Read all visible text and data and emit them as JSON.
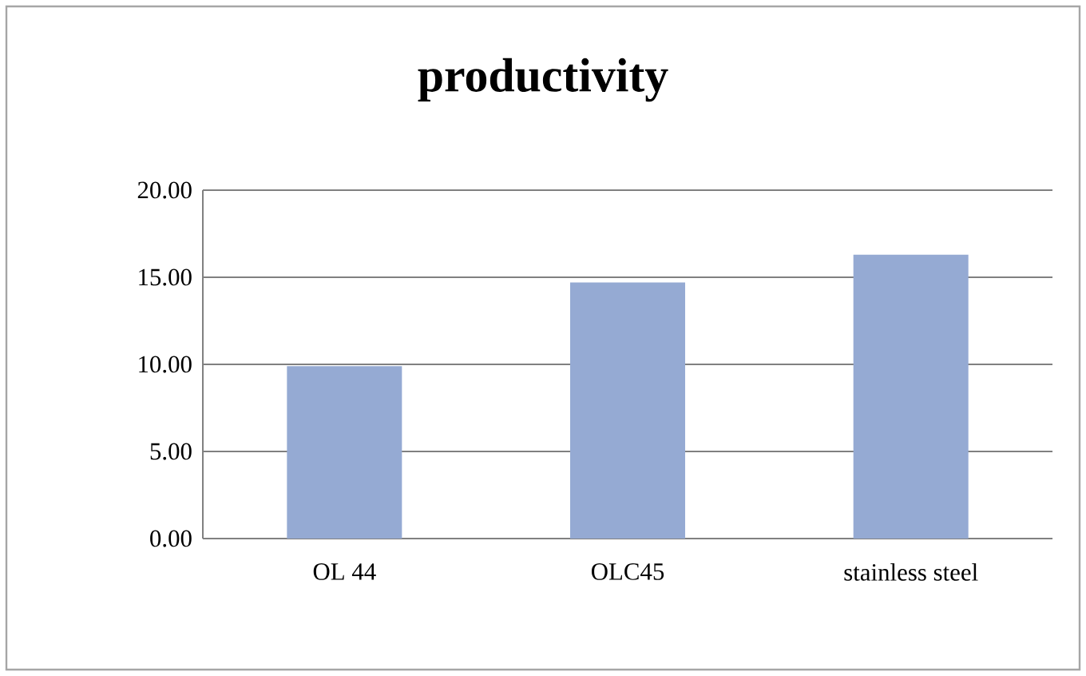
{
  "chart_data": {
    "type": "bar",
    "title": "productivity",
    "categories": [
      "OL 44",
      "OLC45",
      "stainless steel"
    ],
    "values": [
      9.9,
      14.7,
      16.3
    ],
    "color": "#95aad3",
    "ylim": [
      0,
      20
    ],
    "yticks": [
      {
        "value": 0,
        "label": "0.00"
      },
      {
        "value": 5,
        "label": "5.00"
      },
      {
        "value": 10,
        "label": "10.00"
      },
      {
        "value": 15,
        "label": "15.00"
      },
      {
        "value": 20,
        "label": "20.00"
      }
    ],
    "grid": "y"
  }
}
